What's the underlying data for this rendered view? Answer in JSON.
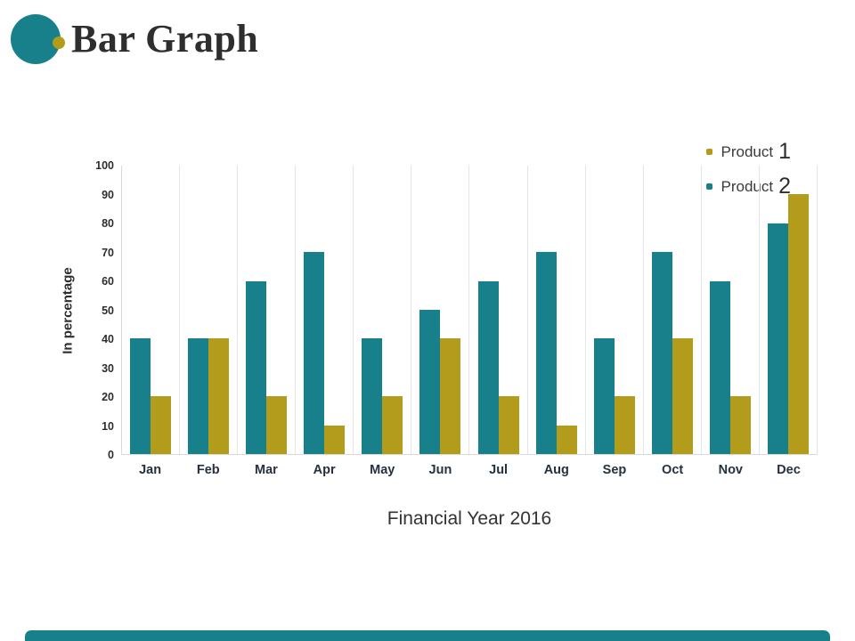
{
  "slide": {
    "title": "Bar Graph",
    "accent_teal": "#17808a",
    "accent_gold": "#b39b1c"
  },
  "chart_data": {
    "type": "bar",
    "title": "",
    "xlabel": "Financial Year 2016",
    "ylabel": "In percentage",
    "ylim": [
      0,
      100
    ],
    "ytick_step": 10,
    "grid": "vertical-category-separators",
    "legend_position": "top-right",
    "categories": [
      "Jan",
      "Feb",
      "Mar",
      "Apr",
      "May",
      "Jun",
      "Jul",
      "Aug",
      "Sep",
      "Oct",
      "Nov",
      "Dec"
    ],
    "series": [
      {
        "name": "Product 1",
        "color": "#b39b1c",
        "values": [
          20,
          40,
          20,
          10,
          20,
          40,
          20,
          10,
          20,
          40,
          20,
          90
        ]
      },
      {
        "name": "Product 2",
        "color": "#17808a",
        "values": [
          40,
          40,
          60,
          70,
          40,
          50,
          60,
          70,
          40,
          70,
          60,
          80
        ]
      }
    ],
    "bar_order": [
      "Product 2",
      "Product 1"
    ],
    "legend": [
      {
        "label_text": "Product",
        "label_num": "1",
        "color": "#b39b1c"
      },
      {
        "label_text": "Product",
        "label_num": "2",
        "color": "#17808a"
      }
    ]
  }
}
